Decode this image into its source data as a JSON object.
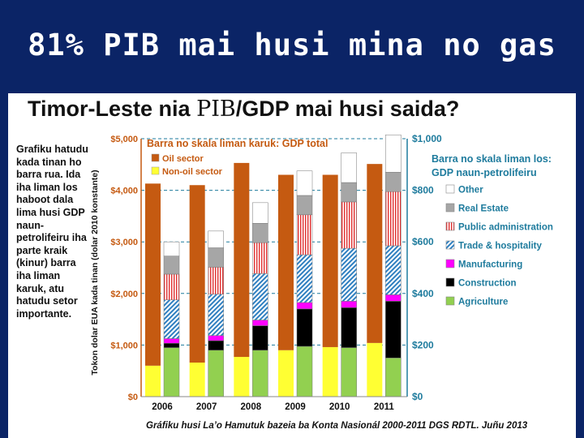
{
  "slide_title": "81% PIB mai husi mina no gas",
  "chart_title_pre": "Timor-Leste nia ",
  "chart_title_pib": "PIB",
  "chart_title_post": "/GDP mai husi saida?",
  "side_note": "Grafiku hatudu kada tinan ho barra rua. Ida iha liman los haboot dala lima husi GDP naun-petrolifeiru iha parte kraik (kinur) barra iha liman karuk, atu hatudu setor importante.",
  "footer_note": "Gráfiku husi La’o Hamutuk bazeia ba Konta Nasionál 2000-2011 DGS RDTL. Juñu 2013",
  "colors": {
    "oil": "#c55a11",
    "nonoil": "#ffff33",
    "agriculture": "#92d050",
    "construction": "#000000",
    "manufacturing": "#ff00ff",
    "trade": "#2f7fc0",
    "public_admin": "#e03030",
    "real_estate": "#a6a6a6",
    "other": "#ffffff",
    "axis_left": "#c55a11",
    "axis_right": "#1e7b9d",
    "background": "#0b2466"
  },
  "chart_data": {
    "type": "bar",
    "categories": [
      "2006",
      "2007",
      "2008",
      "2009",
      "2010",
      "2011"
    ],
    "left_header": "Barra no skala liman karuk: GDP total",
    "right_header_line1": "Barra no skala liman los:",
    "right_header_line2": "GDP naun-petrolifeiru",
    "ylabel": "Tokon dolar EUA kada tinan (dolar 2010 konstante)",
    "left_axis": {
      "min": 0,
      "max": 5000,
      "ticks": [
        "$0",
        "$1,000",
        "$2,000",
        "$3,000",
        "$4,000",
        "$5,000"
      ]
    },
    "right_axis": {
      "min": 0,
      "max": 1000,
      "ticks": [
        "$0",
        "$200",
        "$400",
        "$600",
        "$800",
        "$1,000"
      ]
    },
    "left_series": [
      {
        "name": "Oil sector",
        "key": "oil",
        "values": [
          3530,
          3440,
          3760,
          3400,
          3340,
          3470
        ]
      },
      {
        "name": "Non-oil sector",
        "key": "nonoil",
        "values": [
          600,
          660,
          770,
          900,
          960,
          1040
        ]
      }
    ],
    "right_series": [
      {
        "name": "Agriculture",
        "key": "agriculture",
        "values": [
          190,
          180,
          180,
          195,
          190,
          150
        ]
      },
      {
        "name": "Construction",
        "key": "construction",
        "values": [
          17,
          37,
          95,
          145,
          155,
          220
        ]
      },
      {
        "name": "Manufacturing",
        "key": "manufacturing",
        "values": [
          18,
          20,
          22,
          25,
          25,
          25
        ]
      },
      {
        "name": "Trade & hospitality",
        "key": "trade",
        "values": [
          150,
          160,
          180,
          185,
          205,
          190
        ]
      },
      {
        "name": "Public administration",
        "key": "public_admin",
        "values": [
          100,
          105,
          120,
          155,
          180,
          210
        ]
      },
      {
        "name": "Real Estate",
        "key": "real_estate",
        "values": [
          70,
          75,
          75,
          75,
          75,
          75
        ]
      },
      {
        "name": "Other",
        "key": "other",
        "values": [
          55,
          65,
          80,
          95,
          115,
          145
        ]
      }
    ]
  }
}
